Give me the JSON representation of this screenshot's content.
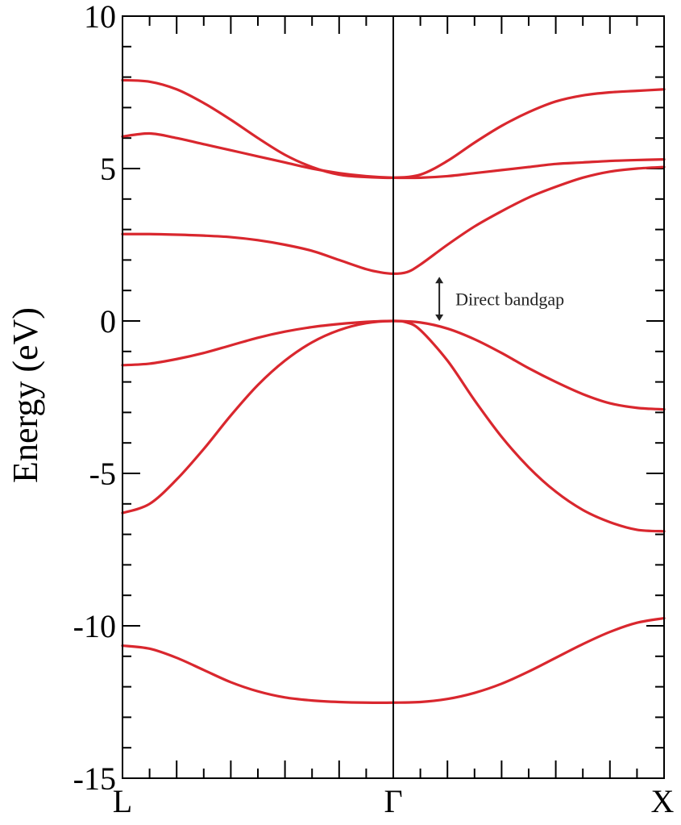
{
  "chart_data": {
    "type": "line",
    "title": "",
    "xlabel": "",
    "ylabel": "Energy (eV)",
    "ylim": [
      -15,
      10
    ],
    "yticks": [
      10,
      5,
      0,
      -5,
      -10,
      -15
    ],
    "ytick_labels": [
      "10",
      "5",
      "0",
      "-5",
      "-10",
      "-15"
    ],
    "kpoints": [
      {
        "label": "L",
        "x": 0
      },
      {
        "label": "Γ",
        "x": 1
      },
      {
        "label": "X",
        "x": 2
      }
    ],
    "grid": false,
    "line_color": "#d9272e",
    "series": [
      {
        "x": [
          0,
          0.1,
          0.2,
          0.3,
          0.4,
          0.5,
          0.6,
          0.7,
          0.8,
          0.9,
          1.0,
          1.1,
          1.2,
          1.3,
          1.4,
          1.5,
          1.6,
          1.7,
          1.8,
          1.9,
          2.0
        ],
        "y": [
          -10.65,
          -10.75,
          -11.05,
          -11.45,
          -11.85,
          -12.15,
          -12.35,
          -12.45,
          -12.5,
          -12.52,
          -12.52,
          -12.5,
          -12.4,
          -12.2,
          -11.9,
          -11.5,
          -11.05,
          -10.6,
          -10.2,
          -9.9,
          -9.75
        ]
      },
      {
        "x": [
          0,
          0.1,
          0.2,
          0.3,
          0.4,
          0.5,
          0.6,
          0.7,
          0.8,
          0.9,
          1.0,
          1.05,
          1.1,
          1.2,
          1.3,
          1.4,
          1.5,
          1.6,
          1.7,
          1.8,
          1.9,
          2.0
        ],
        "y": [
          -6.3,
          -6.0,
          -5.2,
          -4.2,
          -3.1,
          -2.1,
          -1.3,
          -0.7,
          -0.3,
          -0.07,
          0,
          -0.05,
          -0.3,
          -1.3,
          -2.6,
          -3.8,
          -4.8,
          -5.6,
          -6.2,
          -6.6,
          -6.85,
          -6.9
        ]
      },
      {
        "x": [
          0,
          0.1,
          0.2,
          0.3,
          0.4,
          0.5,
          0.6,
          0.7,
          0.8,
          0.9,
          1.0,
          1.1,
          1.2,
          1.3,
          1.4,
          1.5,
          1.6,
          1.7,
          1.8,
          1.9,
          2.0
        ],
        "y": [
          -1.45,
          -1.4,
          -1.25,
          -1.05,
          -0.8,
          -0.55,
          -0.35,
          -0.2,
          -0.1,
          -0.03,
          0,
          -0.05,
          -0.25,
          -0.6,
          -1.05,
          -1.55,
          -2.0,
          -2.4,
          -2.7,
          -2.85,
          -2.9
        ]
      },
      {
        "x": [
          0,
          0.1,
          0.2,
          0.3,
          0.4,
          0.5,
          0.6,
          0.7,
          0.8,
          0.9,
          0.95,
          1.0,
          1.05,
          1.1,
          1.2,
          1.3,
          1.4,
          1.5,
          1.6,
          1.7,
          1.8,
          1.9,
          2.0
        ],
        "y": [
          2.85,
          2.85,
          2.83,
          2.8,
          2.75,
          2.65,
          2.5,
          2.3,
          2.0,
          1.7,
          1.6,
          1.55,
          1.6,
          1.85,
          2.5,
          3.1,
          3.6,
          4.05,
          4.4,
          4.7,
          4.9,
          5.0,
          5.05
        ]
      },
      {
        "x": [
          0,
          0.1,
          0.2,
          0.3,
          0.4,
          0.5,
          0.6,
          0.7,
          0.8,
          0.9,
          1.0,
          1.1,
          1.2,
          1.3,
          1.4,
          1.5,
          1.6,
          1.7,
          1.8,
          1.9,
          2.0
        ],
        "y": [
          6.05,
          6.15,
          6.0,
          5.8,
          5.6,
          5.4,
          5.2,
          5.0,
          4.85,
          4.75,
          4.7,
          4.7,
          4.75,
          4.85,
          4.95,
          5.05,
          5.15,
          5.2,
          5.25,
          5.28,
          5.3
        ]
      },
      {
        "x": [
          0,
          0.1,
          0.2,
          0.3,
          0.4,
          0.5,
          0.6,
          0.7,
          0.8,
          0.9,
          1.0,
          1.1,
          1.2,
          1.3,
          1.4,
          1.5,
          1.6,
          1.7,
          1.8,
          1.9,
          2.0
        ],
        "y": [
          7.9,
          7.85,
          7.6,
          7.15,
          6.6,
          6.0,
          5.45,
          5.05,
          4.8,
          4.72,
          4.7,
          4.8,
          5.25,
          5.85,
          6.4,
          6.85,
          7.2,
          7.4,
          7.5,
          7.55,
          7.6
        ]
      }
    ],
    "annotation": {
      "text": "Direct bandgap",
      "x": 1.17,
      "y_from": 0,
      "y_to": 1.45
    }
  }
}
